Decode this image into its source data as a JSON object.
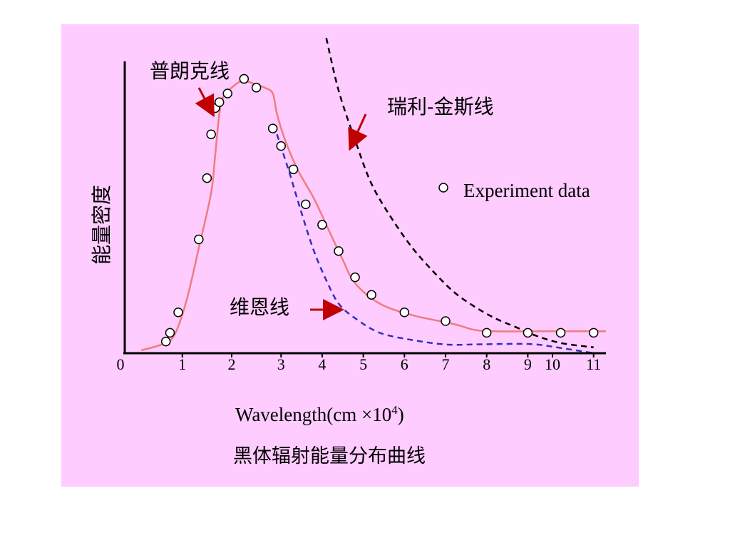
{
  "colors": {
    "panel_bg": "#ffccff",
    "planck": "#f07c7c",
    "wien": "#3030c0",
    "rayleigh_jeans": "#000000",
    "arrow": "#c00000",
    "axis": "#000000"
  },
  "chart_data": {
    "type": "line",
    "title": "",
    "caption": "黑体辐射能量分布曲线",
    "xlabel": "Wavelength(cm ×10",
    "xlabel_exp": "4",
    "xlabel_close": ")",
    "ylabel": "能量密度",
    "xlim": [
      0,
      11.7
    ],
    "ylim": [
      0,
      1.0
    ],
    "x_ticks": [
      {
        "value": 0,
        "label": "0"
      },
      {
        "value": 1.4,
        "label": "1"
      },
      {
        "value": 2.6,
        "label": "2"
      },
      {
        "value": 3.8,
        "label": "3"
      },
      {
        "value": 4.8,
        "label": "4"
      },
      {
        "value": 5.8,
        "label": "5"
      },
      {
        "value": 6.8,
        "label": "6"
      },
      {
        "value": 7.8,
        "label": "7"
      },
      {
        "value": 8.8,
        "label": "8"
      },
      {
        "value": 9.8,
        "label": "9"
      },
      {
        "value": 10.4,
        "label": "10"
      },
      {
        "value": 11.4,
        "label": "11"
      }
    ],
    "grid": false,
    "legend_position": "right",
    "series": [
      {
        "name": "普朗克线",
        "style": "solid",
        "color": "#f07c7c",
        "x": [
          0.4,
          0.9,
          1.2,
          1.5,
          1.8,
          2.1,
          2.2,
          2.3,
          2.4,
          2.6,
          2.8,
          3.0,
          3.2,
          3.4,
          3.6,
          3.7,
          3.9,
          4.2,
          4.6,
          4.9,
          5.3,
          5.6,
          6.2,
          7.0,
          8.0,
          8.5,
          9.0,
          10.0,
          11.0,
          11.7
        ],
        "y": [
          0.01,
          0.03,
          0.06,
          0.18,
          0.36,
          0.55,
          0.68,
          0.82,
          0.88,
          0.91,
          0.93,
          0.93,
          0.92,
          0.91,
          0.89,
          0.82,
          0.73,
          0.63,
          0.53,
          0.44,
          0.32,
          0.24,
          0.17,
          0.13,
          0.1,
          0.08,
          0.075,
          0.075,
          0.075,
          0.075
        ]
      },
      {
        "name": "维恩线",
        "style": "dashed",
        "color": "#3030c0",
        "x": [
          3.7,
          4.0,
          4.3,
          4.6,
          4.9,
          5.2,
          5.6,
          6.2,
          7.0,
          7.8,
          8.5,
          9.4,
          10.0,
          10.6,
          11.4
        ],
        "y": [
          0.75,
          0.62,
          0.48,
          0.35,
          0.25,
          0.17,
          0.12,
          0.07,
          0.045,
          0.03,
          0.03,
          0.032,
          0.03,
          0.018,
          0.0
        ]
      },
      {
        "name": "瑞利-金斯线",
        "style": "dashed",
        "color": "#000000",
        "x": [
          4.9,
          5.2,
          5.6,
          6.0,
          6.5,
          7.0,
          7.5,
          8.0,
          8.5,
          9.0,
          9.5,
          10.0,
          10.6,
          11.4
        ],
        "y": [
          1.08,
          0.9,
          0.73,
          0.58,
          0.46,
          0.36,
          0.28,
          0.21,
          0.16,
          0.12,
          0.09,
          0.06,
          0.035,
          0.02
        ]
      },
      {
        "name": "Experiment data",
        "style": "markers",
        "x": [
          1.0,
          1.1,
          1.3,
          1.8,
          2.0,
          2.1,
          2.2,
          2.3,
          2.5,
          2.9,
          3.2,
          3.6,
          3.8,
          4.1,
          4.4,
          4.8,
          5.2,
          5.6,
          6.0,
          6.8,
          7.8,
          8.8,
          9.8,
          10.6,
          11.4
        ],
        "y": [
          0.04,
          0.07,
          0.14,
          0.39,
          0.6,
          0.75,
          0.84,
          0.86,
          0.89,
          0.94,
          0.91,
          0.77,
          0.71,
          0.63,
          0.51,
          0.44,
          0.35,
          0.26,
          0.2,
          0.14,
          0.11,
          0.07,
          0.07,
          0.07,
          0.07
        ]
      }
    ],
    "annotations": [
      {
        "text": "普朗克线"
      },
      {
        "text": "瑞利-金斯线"
      },
      {
        "text": "维恩线"
      }
    ]
  }
}
